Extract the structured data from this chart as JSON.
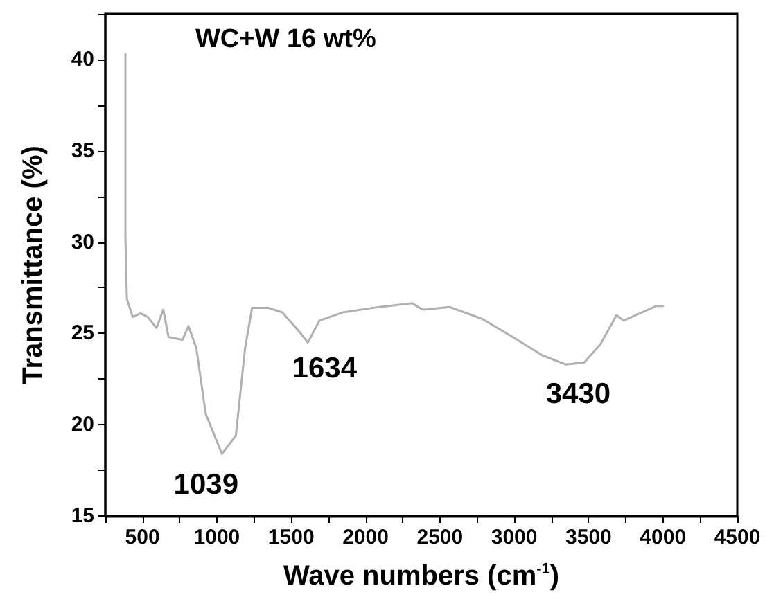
{
  "chart_data": {
    "type": "line",
    "title": "WC+W 16 wt%",
    "xlabel": "Wave numbers (cm$^{-1}$)",
    "ylabel": "Transmittance (%)",
    "x": [
      385,
      385,
      395,
      434,
      488,
      535,
      594,
      640,
      675,
      769,
      809,
      862,
      925,
      1034,
      1128,
      1190,
      1237,
      1346,
      1440,
      1549,
      1612,
      1690,
      1846,
      2093,
      2314,
      2374,
      2392,
      2564,
      2783,
      2970,
      3189,
      3345,
      3470,
      3579,
      3688,
      3735,
      3845,
      3954,
      4000
    ],
    "series": [
      {
        "color": "#b0b0b0",
        "values": [
          40.3,
          30.3,
          26.9,
          25.9,
          26.1,
          25.9,
          25.3,
          26.3,
          24.8,
          24.65,
          25.4,
          24.2,
          20.6,
          18.4,
          19.4,
          24.2,
          26.4,
          26.4,
          26.15,
          25.15,
          24.5,
          25.7,
          26.15,
          26.45,
          26.65,
          26.35,
          26.3,
          26.45,
          25.8,
          24.9,
          23.8,
          23.3,
          23.4,
          24.4,
          26.0,
          25.7,
          26.1,
          26.5,
          26.5
        ]
      }
    ],
    "annotations": [
      {
        "text": "1039",
        "x": 1039,
        "y": 18.4
      },
      {
        "text": "1634",
        "x": 1612,
        "y": 24.5
      },
      {
        "text": "3430",
        "x": 3430,
        "y": 23.4
      }
    ],
    "xlim": [
      250,
      4500
    ],
    "xticks": [
      {
        "value": 250,
        "label": null
      },
      500,
      {
        "value": 750,
        "label": null
      },
      1000,
      {
        "value": 1250,
        "label": null
      },
      1500,
      {
        "value": 1750,
        "label": null
      },
      2000,
      {
        "value": 2250,
        "label": null
      },
      2500,
      {
        "value": 2750,
        "label": null
      },
      3000,
      {
        "value": 3250,
        "label": null
      },
      3500,
      {
        "value": 3750,
        "label": null
      },
      4000,
      {
        "value": 4250,
        "label": null
      },
      4500
    ],
    "ylim": [
      15,
      42.5
    ],
    "yticks": [
      15,
      {
        "value": 17.5,
        "label": null
      },
      20,
      {
        "value": 22.5,
        "label": null
      },
      25,
      {
        "value": 27.5,
        "label": null
      },
      30,
      {
        "value": 32.5,
        "label": null
      },
      35,
      {
        "value": 37.5,
        "label": null
      },
      40,
      {
        "value": 42.5,
        "label": null
      }
    ],
    "grid": false,
    "marker": "none",
    "line_style": "solid"
  }
}
